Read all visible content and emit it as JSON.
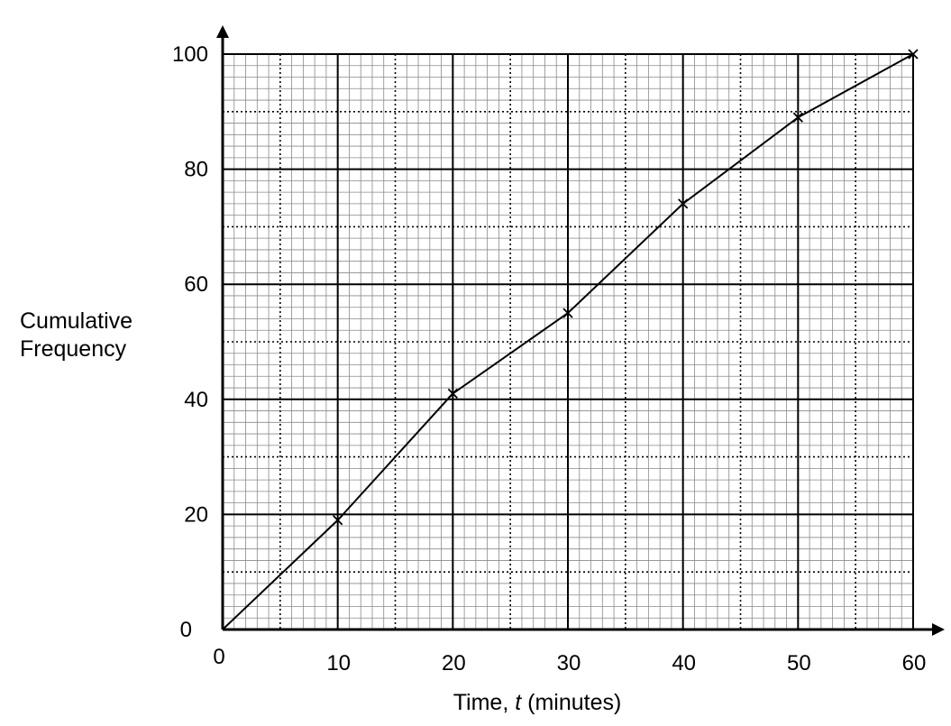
{
  "chart_data": {
    "type": "line",
    "title": "",
    "xlabel_prefix": "Time, ",
    "xlabel_var": "t",
    "xlabel_suffix": " (minutes)",
    "ylabel_line1": "Cumulative",
    "ylabel_line2": "Frequency",
    "xlim": [
      0,
      60
    ],
    "ylim": [
      0,
      100
    ],
    "x_ticks": [
      0,
      10,
      20,
      30,
      40,
      50,
      60
    ],
    "y_ticks": [
      0,
      20,
      40,
      60,
      80,
      100
    ],
    "grid": true,
    "series": [
      {
        "x": [
          0,
          10,
          20,
          30,
          40,
          50,
          60
        ],
        "y": [
          0,
          19,
          41,
          55,
          74,
          89,
          100
        ],
        "marker": "x"
      }
    ]
  }
}
